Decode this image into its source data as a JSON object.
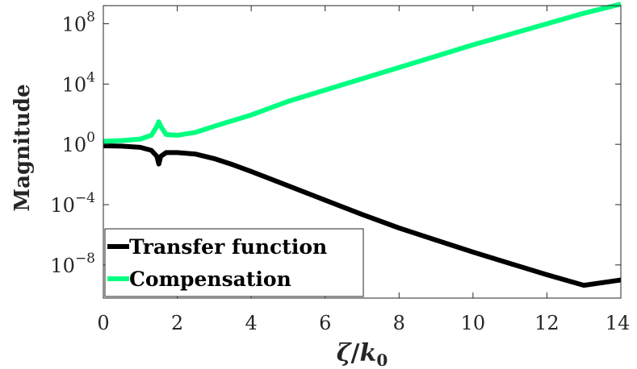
{
  "chart_data": {
    "type": "line",
    "xlabel": {
      "main": "ζ",
      "slash": "/",
      "var": "k",
      "sub": "0"
    },
    "ylabel": "Magnitude",
    "xlim": [
      0,
      14
    ],
    "ylim_log10": [
      -10.2,
      9.2
    ],
    "y_scale": "log",
    "grid": false,
    "legend_position": "bottom-left",
    "x_ticks": [
      0,
      2,
      4,
      6,
      8,
      10,
      12,
      14
    ],
    "x_tick_labels": [
      "0",
      "2",
      "4",
      "6",
      "8",
      "10",
      "12",
      "14"
    ],
    "y_ticks_log10": [
      8,
      4,
      0,
      -4,
      -8
    ],
    "y_tick_labels": [
      {
        "base": "10",
        "exp": "8"
      },
      {
        "base": "10",
        "exp": "4"
      },
      {
        "base": "10",
        "exp": "0"
      },
      {
        "base": "10",
        "exp": "−4"
      },
      {
        "base": "10",
        "exp": "−8"
      }
    ],
    "series": [
      {
        "name": "Transfer function",
        "color": "#000000",
        "x": [
          0,
          0.5,
          1.0,
          1.3,
          1.45,
          1.5,
          1.55,
          1.7,
          2.0,
          2.5,
          3.0,
          3.5,
          4.0,
          5.0,
          6.0,
          7.0,
          8.0,
          9.0,
          10.0,
          11.0,
          12.0,
          13.0,
          14.0
        ],
        "log10_y": [
          -0.1,
          -0.12,
          -0.2,
          -0.4,
          -0.8,
          -1.3,
          -0.8,
          -0.55,
          -0.55,
          -0.65,
          -0.95,
          -1.35,
          -1.8,
          -2.75,
          -3.7,
          -4.65,
          -5.55,
          -6.35,
          -7.15,
          -7.9,
          -8.65,
          -9.35,
          -9.0
        ]
      },
      {
        "name": "Compensation",
        "color": "#00ff80",
        "x": [
          0,
          0.5,
          1.0,
          1.3,
          1.45,
          1.5,
          1.55,
          1.7,
          2.0,
          2.5,
          3.0,
          4.0,
          5.0,
          6.0,
          7.0,
          8.0,
          9.0,
          10.0,
          11.0,
          12.0,
          13.0,
          14.0
        ],
        "log10_y": [
          0.2,
          0.25,
          0.35,
          0.6,
          1.2,
          1.5,
          1.2,
          0.65,
          0.6,
          0.8,
          1.2,
          1.95,
          2.85,
          3.6,
          4.35,
          5.1,
          5.85,
          6.6,
          7.3,
          8.0,
          8.7,
          9.3
        ]
      }
    ]
  }
}
